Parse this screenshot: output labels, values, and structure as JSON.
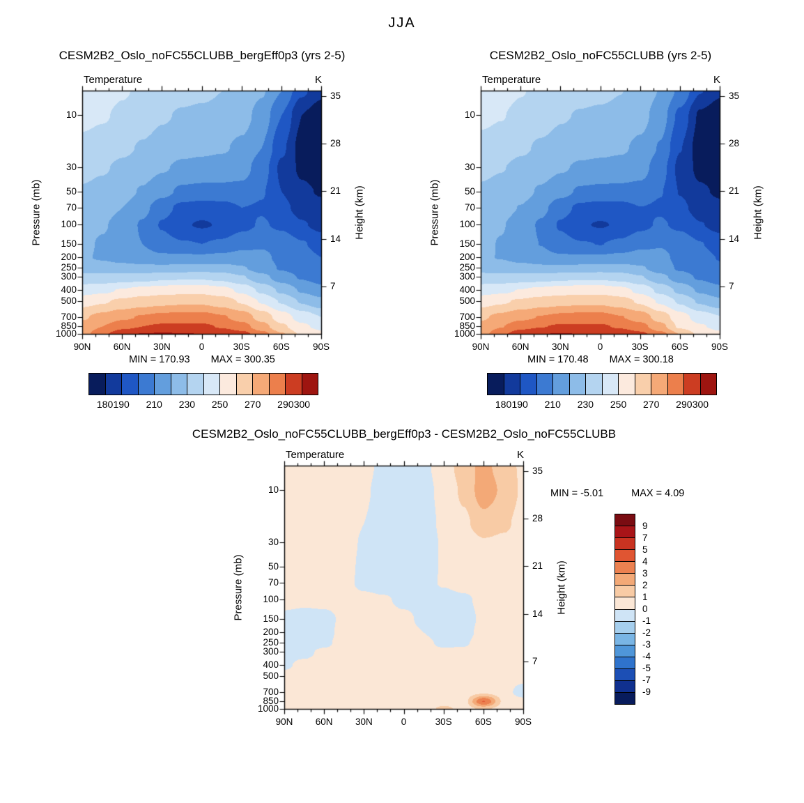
{
  "figure_title": "JJA",
  "panels": [
    {
      "title": "CESM2B2_Oslo_noFC55CLUBB_bergEff0p3 (yrs 2-5)",
      "field_label": "Temperature",
      "unit": "K",
      "min_text": "MIN =  170.93",
      "max_text": "MAX =  300.35"
    },
    {
      "title": "CESM2B2_Oslo_noFC55CLUBB (yrs 2-5)",
      "field_label": "Temperature",
      "unit": "K",
      "min_text": "MIN =  170.48",
      "max_text": "MAX =  300.18"
    },
    {
      "title": "CESM2B2_Oslo_noFC55CLUBB_bergEff0p3 - CESM2B2_Oslo_noFC55CLUBB",
      "field_label": "Temperature",
      "unit": "K",
      "min_text": "MIN =  -5.01",
      "max_text": "MAX =   4.09"
    }
  ],
  "axes": {
    "pressure_label": "Pressure (mb)",
    "height_label": "Height (km)",
    "pressure_ticks": [
      "10",
      "30",
      "50",
      "70",
      "100",
      "150",
      "200",
      "250",
      "300",
      "400",
      "500",
      "700",
      "850",
      "1000"
    ],
    "pressure_tick_values": [
      10,
      30,
      50,
      70,
      100,
      150,
      200,
      250,
      300,
      400,
      500,
      700,
      850,
      1000
    ],
    "height_ticks": [
      "35",
      "28",
      "21",
      "14",
      "7"
    ],
    "height_tick_values": [
      35,
      28,
      21,
      14,
      7
    ],
    "lat_ticks": [
      "90N",
      "60N",
      "30N",
      "0",
      "30S",
      "60S",
      "90S"
    ]
  },
  "colorbars": {
    "temperature": {
      "range": [
        170,
        310
      ],
      "cell_boundaries": [
        180,
        190,
        200,
        210,
        220,
        230,
        240,
        250,
        260,
        270,
        280,
        290,
        300
      ],
      "colors": [
        "#081c5c",
        "#123a9c",
        "#1f57c4",
        "#3c7ad2",
        "#639edd",
        "#8dbce8",
        "#b4d4f0",
        "#d8e8f7",
        "#fceade",
        "#f9cfab",
        "#f5a977",
        "#ec7f4c",
        "#cc3d22",
        "#9e1510"
      ],
      "labels": [
        "180",
        "190",
        "210",
        "230",
        "250",
        "270",
        "290",
        "300"
      ],
      "label_values": [
        180,
        190,
        210,
        230,
        250,
        270,
        290,
        300
      ]
    },
    "difference": {
      "boundaries": [
        -9,
        -7,
        -5,
        -4,
        -3,
        -2,
        -1,
        0,
        1,
        2,
        3,
        4,
        5,
        7,
        9
      ],
      "colors": [
        "#081c5c",
        "#10308f",
        "#1c4fb5",
        "#2f73cc",
        "#4f96d9",
        "#79b5e5",
        "#a6cfee",
        "#cfe4f6",
        "#fbe7d6",
        "#f8cba5",
        "#f3a977",
        "#ec8150",
        "#e05532",
        "#c93321",
        "#a81418",
        "#7a0c12"
      ],
      "labels": [
        "9",
        "7",
        "5",
        "4",
        "3",
        "2",
        "1",
        "0",
        "-1",
        "-2",
        "-3",
        "-4",
        "-5",
        "-7",
        "-9"
      ]
    }
  },
  "chart_data": [
    {
      "type": "heatmap",
      "title": "CESM2B2_Oslo_noFC55CLUBB_bergEff0p3 (yrs 2-5)",
      "variable": "Temperature",
      "units": "K",
      "season": "JJA",
      "x_lat_deg": [
        90,
        75,
        60,
        45,
        30,
        15,
        0,
        -15,
        -30,
        -45,
        -60,
        -75,
        -90
      ],
      "y_pressure_mb": [
        6,
        10,
        20,
        30,
        50,
        70,
        100,
        150,
        200,
        250,
        300,
        400,
        500,
        700,
        850,
        1000
      ],
      "y_axis_scale": "log-pressure",
      "values_K": [
        [
          246,
          244,
          241,
          238,
          235,
          233,
          232,
          230,
          227,
          221,
          210,
          192,
          183
        ],
        [
          243,
          241,
          238,
          235,
          231,
          229,
          228,
          227,
          224,
          216,
          200,
          180,
          173
        ],
        [
          237,
          235,
          232,
          229,
          226,
          223,
          222,
          221,
          218,
          210,
          192,
          176,
          171
        ],
        [
          233,
          231,
          228,
          225,
          221,
          218,
          217,
          216,
          214,
          205,
          188,
          178,
          174
        ],
        [
          229,
          227,
          224,
          219,
          213,
          208,
          207,
          207,
          207,
          201,
          190,
          182,
          179
        ],
        [
          226,
          224,
          220,
          213,
          204,
          197,
          195,
          196,
          200,
          199,
          193,
          186,
          183
        ],
        [
          223,
          221,
          216,
          209,
          199,
          191,
          189,
          191,
          197,
          201,
          198,
          191,
          187
        ],
        [
          222,
          219,
          215,
          210,
          204,
          201,
          200,
          202,
          207,
          209,
          207,
          201,
          196
        ],
        [
          221,
          219,
          216,
          214,
          212,
          212,
          212,
          213,
          214,
          212,
          208,
          204,
          200
        ],
        [
          226,
          225,
          224,
          223,
          223,
          224,
          225,
          224,
          221,
          215,
          209,
          205,
          202
        ],
        [
          233,
          233,
          234,
          235,
          237,
          238,
          238,
          236,
          231,
          223,
          215,
          209,
          205
        ],
        [
          246,
          248,
          251,
          254,
          256,
          257,
          257,
          254,
          248,
          238,
          228,
          219,
          214
        ],
        [
          256,
          259,
          262,
          265,
          267,
          268,
          268,
          265,
          259,
          249,
          239,
          229,
          223
        ],
        [
          269,
          273,
          278,
          281,
          283,
          284,
          284,
          281,
          276,
          266,
          255,
          246,
          240
        ],
        [
          273,
          280,
          287,
          290,
          292,
          292,
          292,
          289,
          284,
          274,
          262,
          252,
          247
        ],
        [
          276,
          288,
          297,
          300.5,
          301,
          300.5,
          300,
          298,
          294,
          284,
          271,
          258,
          253
        ]
      ],
      "min": 170.93,
      "max": 300.35
    },
    {
      "type": "heatmap",
      "title": "CESM2B2_Oslo_noFC55CLUBB (yrs 2-5)",
      "variable": "Temperature",
      "units": "K",
      "season": "JJA",
      "x_lat_deg": [
        90,
        75,
        60,
        45,
        30,
        15,
        0,
        -15,
        -30,
        -45,
        -60,
        -75,
        -90
      ],
      "y_pressure_mb": [
        6,
        10,
        20,
        30,
        50,
        70,
        100,
        150,
        200,
        250,
        300,
        400,
        500,
        700,
        850,
        1000
      ],
      "y_axis_scale": "log-pressure",
      "values_derived": "chart_data[0].values_K minus chart_data[2].values_K",
      "min": 170.48,
      "max": 300.18
    },
    {
      "type": "heatmap",
      "title": "CESM2B2_Oslo_noFC55CLUBB_bergEff0p3 - CESM2B2_Oslo_noFC55CLUBB",
      "variable": "Temperature difference",
      "units": "K",
      "season": "JJA",
      "x_lat_deg": [
        90,
        75,
        60,
        45,
        30,
        15,
        0,
        -15,
        -30,
        -45,
        -60,
        -75,
        -90
      ],
      "y_pressure_mb": [
        6,
        10,
        20,
        30,
        50,
        70,
        100,
        150,
        200,
        250,
        300,
        400,
        500,
        700,
        850,
        1000
      ],
      "y_axis_scale": "log-pressure",
      "values_K": [
        [
          0.5,
          0.5,
          0.5,
          0.4,
          0.2,
          -0.2,
          -0.3,
          -0.2,
          0.5,
          1.5,
          2.3,
          1.5,
          0.8
        ],
        [
          0.5,
          0.5,
          0.5,
          0.4,
          0.1,
          -0.3,
          -0.4,
          -0.3,
          0.3,
          1.2,
          2.6,
          1.8,
          0.8
        ],
        [
          0.5,
          0.5,
          0.5,
          0.4,
          0,
          -0.4,
          -0.5,
          -0.4,
          0.2,
          0.8,
          1.6,
          1.2,
          0.6
        ],
        [
          0.5,
          0.5,
          0.5,
          0.3,
          -0.1,
          -0.5,
          -0.5,
          -0.4,
          0.1,
          0.5,
          0.9,
          0.8,
          0.5
        ],
        [
          0.5,
          0.5,
          0.4,
          0.3,
          -0.2,
          -0.5,
          -0.6,
          -0.4,
          0.1,
          0.4,
          0.5,
          0.5,
          0.5
        ],
        [
          0.5,
          0.4,
          0.4,
          0.2,
          -0.2,
          -0.4,
          -0.5,
          -0.3,
          0.1,
          0.4,
          0.5,
          0.5,
          0.5
        ],
        [
          0.4,
          0.3,
          0.3,
          0.3,
          0.2,
          0.1,
          -0.2,
          -0.3,
          -0.4,
          -0.2,
          0.3,
          0.5,
          0.5
        ],
        [
          -0.3,
          -0.5,
          -0.3,
          0.2,
          0.4,
          0.3,
          0.2,
          -0.2,
          -0.5,
          -0.4,
          0.2,
          0.5,
          0.5
        ],
        [
          -0.4,
          -0.6,
          -0.3,
          0.3,
          0.5,
          0.4,
          0.3,
          0,
          -0.4,
          -0.3,
          0.3,
          0.5,
          0.5
        ],
        [
          -0.3,
          -0.4,
          -0.2,
          0.4,
          0.5,
          0.5,
          0.4,
          0.2,
          -0.2,
          -0.1,
          0.4,
          0.5,
          0.5
        ],
        [
          -0.2,
          -0.2,
          0.2,
          0.5,
          0.5,
          0.5,
          0.5,
          0.4,
          0.2,
          0.2,
          0.5,
          0.5,
          0.5
        ],
        [
          -0.1,
          0.2,
          0.4,
          0.5,
          0.5,
          0.5,
          0.5,
          0.5,
          0.4,
          0.4,
          0.5,
          0.5,
          0.5
        ],
        [
          0.2,
          0.3,
          0.5,
          0.5,
          0.5,
          0.5,
          0.5,
          0.5,
          0.5,
          0.5,
          0.5,
          0.5,
          0.5
        ],
        [
          0.3,
          0.4,
          0.5,
          0.5,
          0.5,
          0.5,
          0.5,
          0.5,
          0.5,
          0.5,
          0.8,
          0.5,
          -0.6
        ],
        [
          0.3,
          0.5,
          0.5,
          0.5,
          0.5,
          0.5,
          0.5,
          0.5,
          0.5,
          0.6,
          4.05,
          0.8,
          0.4
        ],
        [
          0.3,
          0.5,
          0.5,
          0.5,
          0.5,
          0.5,
          0.5,
          0.5,
          1.3,
          0.6,
          1.2,
          0.5,
          0.3
        ]
      ],
      "min": -5.01,
      "max": 4.09
    }
  ]
}
